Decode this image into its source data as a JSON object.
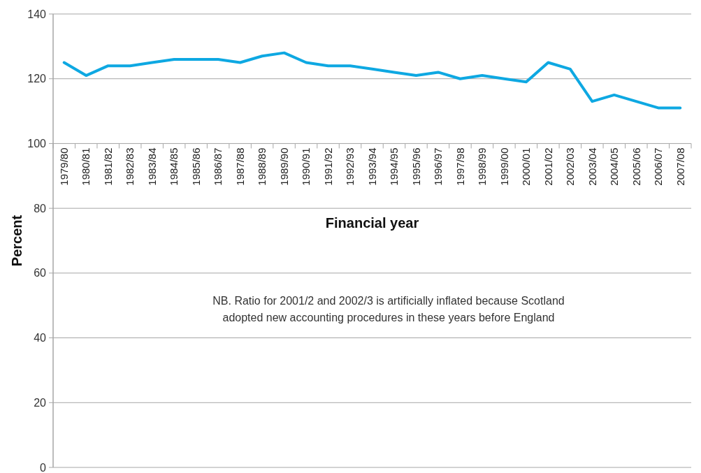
{
  "chart_data": {
    "type": "line",
    "xlabel": "Financial year",
    "ylabel": "Percent",
    "categories": [
      "1979/80",
      "1980/81",
      "1981/82",
      "1982/83",
      "1983/84",
      "1984/85",
      "1985/86",
      "1986/87",
      "1987/88",
      "1988/89",
      "1989/90",
      "1990/91",
      "1991/92",
      "1992/93",
      "1993/94",
      "1994/95",
      "1995/96",
      "1996/97",
      "1997/98",
      "1998/99",
      "1999/00",
      "2000/01",
      "2001/02",
      "2002/03",
      "2003/04",
      "2004/05",
      "2005/06",
      "2006/07",
      "2007/08"
    ],
    "series": [
      {
        "color": "#0ea8e2",
        "values": [
          125,
          121,
          124,
          124,
          125,
          126,
          126,
          126,
          125,
          127,
          128,
          125,
          124,
          124,
          123,
          122,
          121,
          122,
          120,
          121,
          120,
          119,
          125,
          123,
          113,
          115,
          113,
          111,
          111
        ]
      }
    ],
    "ylim": [
      0,
      140
    ],
    "yticks": [
      0,
      20,
      40,
      60,
      80,
      100,
      120,
      140
    ],
    "grid": "y",
    "marker": "none",
    "line_style": "solid",
    "annotations": [
      "NB. Ratio for 2001/2 and 2002/3 is artificially inflated  because Scotland",
      "adopted new accounting procedures in these years before England"
    ]
  }
}
